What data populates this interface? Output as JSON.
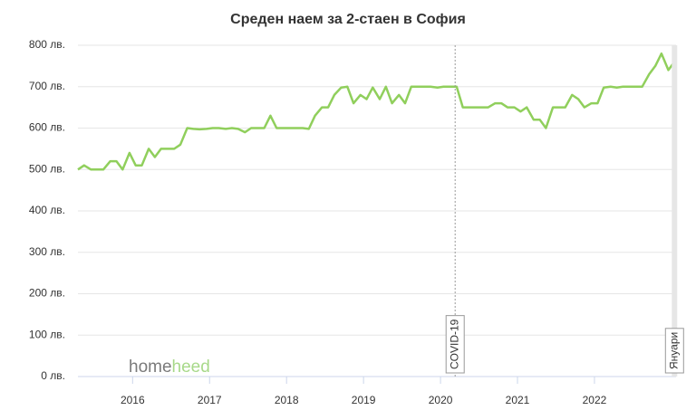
{
  "chart_data": {
    "type": "line",
    "title": "Среден наем за 2-стаен в София",
    "x": [
      2015.29,
      2015.37,
      2015.46,
      2015.54,
      2015.62,
      2015.71,
      2015.79,
      2015.87,
      2015.96,
      2016.04,
      2016.12,
      2016.21,
      2016.29,
      2016.37,
      2016.46,
      2016.54,
      2016.62,
      2016.71,
      2016.79,
      2016.87,
      2016.96,
      2017.04,
      2017.12,
      2017.21,
      2017.29,
      2017.37,
      2017.46,
      2017.54,
      2017.62,
      2017.71,
      2017.79,
      2017.87,
      2017.96,
      2018.04,
      2018.12,
      2018.21,
      2018.29,
      2018.37,
      2018.46,
      2018.54,
      2018.62,
      2018.71,
      2018.79,
      2018.87,
      2018.96,
      2019.04,
      2019.12,
      2019.21,
      2019.29,
      2019.37,
      2019.46,
      2019.54,
      2019.62,
      2019.71,
      2019.79,
      2019.87,
      2019.96,
      2020.04,
      2020.12,
      2020.21,
      2020.29,
      2020.37,
      2020.46,
      2020.54,
      2020.62,
      2020.71,
      2020.79,
      2020.87,
      2020.96,
      2021.04,
      2021.12,
      2021.21,
      2021.29,
      2021.37,
      2021.46,
      2021.54,
      2021.62,
      2021.71,
      2021.79,
      2021.87,
      2021.96,
      2022.04,
      2022.12,
      2022.21,
      2022.29,
      2022.37,
      2022.46,
      2022.54,
      2022.62,
      2022.71,
      2022.79,
      2022.87,
      2022.96,
      2023.04
    ],
    "series": [
      {
        "color": "#90cf5c",
        "values": [
          500,
          510,
          500,
          500,
          500,
          520,
          520,
          500,
          540,
          510,
          510,
          550,
          530,
          550,
          550,
          550,
          560,
          600,
          598,
          597,
          598,
          600,
          600,
          598,
          600,
          598,
          590,
          600,
          600,
          600,
          630,
          600,
          600,
          600,
          600,
          600,
          598,
          630,
          650,
          650,
          680,
          698,
          700,
          660,
          680,
          670,
          698,
          670,
          700,
          660,
          680,
          660,
          700,
          700,
          700,
          700,
          698,
          700,
          700,
          700,
          650,
          650,
          650,
          650,
          650,
          660,
          660,
          650,
          650,
          640,
          650,
          620,
          620,
          600,
          650,
          650,
          650,
          680,
          670,
          650,
          660,
          660,
          698,
          700,
          698,
          700,
          700,
          700,
          700,
          730,
          750,
          780,
          740,
          760
        ]
      }
    ],
    "xlim": [
      2015.29,
      2023.06
    ],
    "xticks": [
      2016,
      2017,
      2018,
      2019,
      2020,
      2021,
      2022
    ],
    "ylim": [
      0,
      800
    ],
    "yticks": [
      {
        "value": 0,
        "label": "0 лв."
      },
      {
        "value": 100,
        "label": "100 лв."
      },
      {
        "value": 200,
        "label": "200 лв."
      },
      {
        "value": 300,
        "label": "300 лв."
      },
      {
        "value": 400,
        "label": "400 лв."
      },
      {
        "value": 500,
        "label": "500 лв."
      },
      {
        "value": 600,
        "label": "600 лв."
      },
      {
        "value": 700,
        "label": "700 лв."
      },
      {
        "value": 800,
        "label": "800 лв."
      }
    ],
    "grid": true,
    "annotations": [
      {
        "x": 2020.19,
        "label": "COVID-19"
      },
      {
        "x": 2023.04,
        "label": "Януари"
      }
    ],
    "watermark": [
      "home",
      "heed"
    ]
  }
}
